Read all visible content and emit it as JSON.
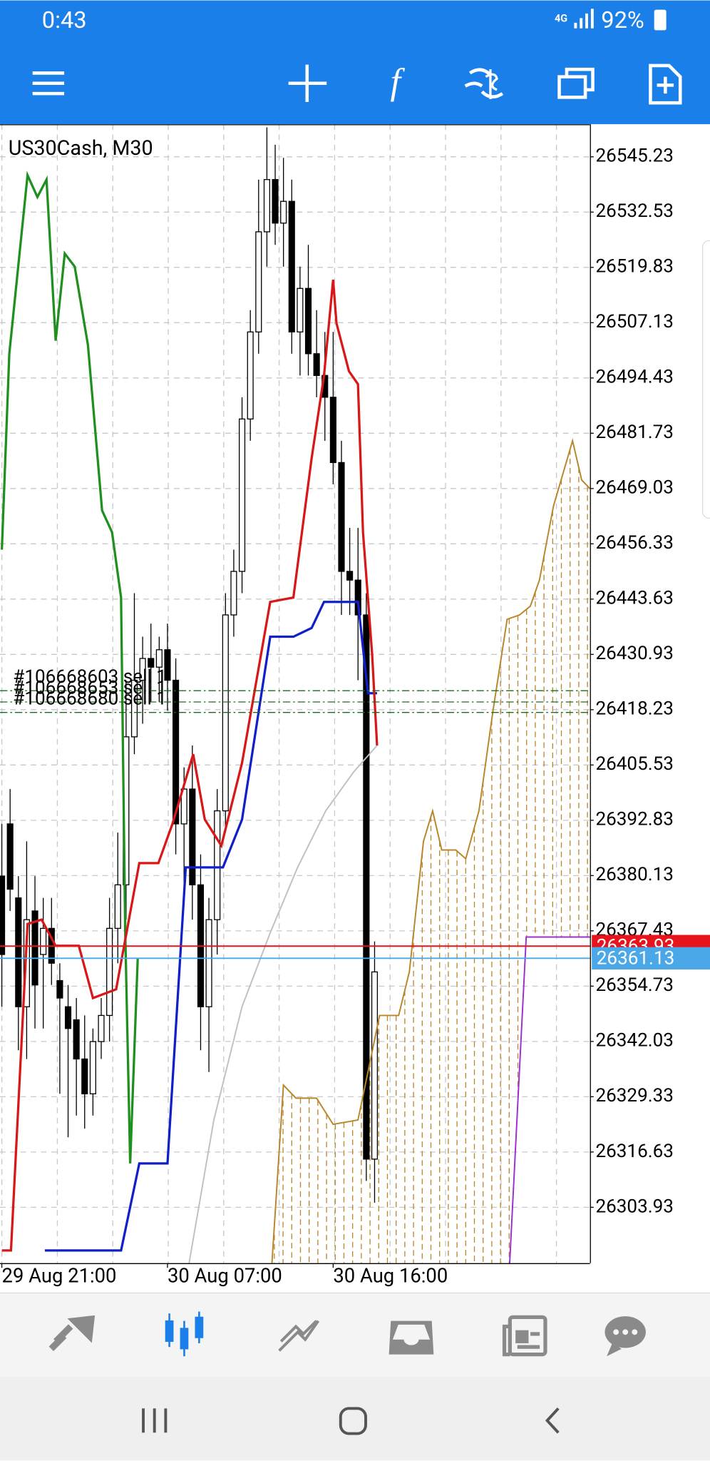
{
  "status_bar": {
    "time": "0:43",
    "network": "4G",
    "battery": "92%"
  },
  "chart_data": {
    "type": "candlestick",
    "title": "US30Cash, M30",
    "candles": {
      "open": [
        26380,
        26392,
        26375,
        26350,
        26372,
        26362,
        26368,
        26356,
        26350,
        26347,
        26338,
        26330,
        26342,
        26348,
        26368,
        26378,
        26412,
        26425,
        26430,
        26428,
        26432,
        26425,
        26392,
        26400,
        26378,
        26350,
        26370,
        26395,
        26440,
        26450,
        26485,
        26505,
        26528,
        26540,
        26530,
        26535,
        26505,
        26515,
        26500,
        26495,
        26490,
        26475,
        26450,
        26448,
        26440,
        26315
      ],
      "high": [
        26392,
        26400,
        26380,
        26388,
        26380,
        26375,
        26375,
        26360,
        26355,
        26352,
        26348,
        26345,
        26352,
        26375,
        26390,
        26425,
        26445,
        26435,
        26438,
        26435,
        26438,
        26430,
        26405,
        26410,
        26385,
        26375,
        26400,
        26445,
        26455,
        26490,
        26510,
        26540,
        26552,
        26548,
        26545,
        26540,
        26520,
        26525,
        26510,
        26505,
        26505,
        26480,
        26460,
        26460,
        26445,
        26365
      ],
      "low": [
        26350,
        26372,
        26340,
        26338,
        26345,
        26345,
        26355,
        26330,
        26320,
        26325,
        26322,
        26325,
        26338,
        26342,
        26360,
        26370,
        26408,
        26415,
        26420,
        26420,
        26418,
        26385,
        26375,
        26370,
        26340,
        26335,
        26362,
        26390,
        26435,
        26445,
        26480,
        26500,
        26520,
        26525,
        26520,
        26500,
        26495,
        26495,
        26490,
        26480,
        26470,
        26440,
        26440,
        26425,
        26310,
        26305
      ],
      "close": [
        26362,
        26377,
        26350,
        26370,
        26355,
        26368,
        26360,
        26352,
        26345,
        26338,
        26330,
        26342,
        26348,
        26368,
        26378,
        26412,
        26425,
        26430,
        26428,
        26432,
        26425,
        26392,
        26400,
        26378,
        26350,
        26370,
        26395,
        26440,
        26450,
        26485,
        26505,
        26528,
        26540,
        26530,
        26535,
        26505,
        26515,
        26500,
        26495,
        26490,
        26475,
        26450,
        26448,
        26440,
        26315,
        26358
      ]
    },
    "xticks": [
      {
        "value": 0,
        "label": "29 Aug 21:00"
      },
      {
        "value": 20,
        "label": "30 Aug 07:00"
      },
      {
        "value": 40,
        "label": "30 Aug 16:00"
      }
    ],
    "xlim": [
      -0.22,
      71.0
    ],
    "ylim": [
      26291.1,
      26552.7
    ],
    "yticks": [
      26545.23,
      26532.53,
      26519.83,
      26507.13,
      26494.43,
      26481.73,
      26469.03,
      26456.33,
      26443.63,
      26430.93,
      26418.23,
      26405.53,
      26392.83,
      26380.13,
      26367.43,
      26354.73,
      26342.03,
      26329.33,
      26316.63,
      26303.93
    ],
    "grid": true,
    "series": [
      {
        "color": "#1f8f1f",
        "x": [
          0,
          0.9,
          3.1,
          4.3,
          5.4,
          6.5,
          7.6,
          8.8,
          10.4,
          12.1,
          13.3,
          14.4,
          14.9,
          15.5,
          16.4
        ],
        "values": [
          26455,
          26500,
          26541,
          26536,
          26540,
          26503,
          26523,
          26520,
          26502,
          26464,
          26459,
          26444,
          26367,
          26314,
          26361
        ]
      },
      {
        "color": "#c0c0c0",
        "x": [
          22.6,
          25.6,
          29.0,
          32.4,
          35.7,
          39.1,
          42.5,
          45.3
        ],
        "values": [
          26291,
          26324,
          26350,
          26367,
          26382,
          26395,
          26404,
          26410
        ]
      },
      {
        "color": "#1020c8",
        "x": [
          5.2,
          14.4,
          16.6,
          20.0,
          22.2,
          26.7,
          29.0,
          32.4,
          35.2,
          37.4,
          38.9,
          43.0,
          44.2,
          45.3
        ],
        "values": [
          26294,
          26294,
          26314,
          26314,
          26382,
          26382,
          26393,
          26435,
          26435,
          26437,
          26443,
          26443,
          26422,
          26422
        ]
      },
      {
        "color": "#d81818",
        "x": [
          0,
          1.1,
          3.1,
          4.8,
          6.5,
          9.3,
          11.0,
          13.8,
          16.6,
          18.9,
          20.6,
          23.1,
          24.5,
          26.5,
          29.0,
          32.4,
          35.2,
          37.4,
          38.9,
          40.0,
          40.4,
          41.9,
          43.0,
          43.6,
          44.7,
          45.3
        ],
        "values": [
          26294,
          26294,
          26369,
          26370,
          26364,
          26364,
          26352,
          26354,
          26383,
          26383,
          26392,
          26408,
          26393,
          26387,
          26406,
          26443,
          26444,
          26476,
          26495,
          26517,
          26507,
          26496,
          26493,
          26459,
          26431,
          26410
        ]
      },
      {
        "color": "#b8862b",
        "x": [
          32.6,
          34.0,
          35.5,
          38.0,
          40.0,
          43.0,
          44.2,
          45.6,
          47.9,
          49.2,
          50.9,
          52.0,
          53.1,
          54.8,
          56.0,
          57.6,
          59.3,
          61.0,
          62.5,
          63.8,
          64.9,
          66.6,
          68.9,
          70.0,
          71.0
        ],
        "values": [
          26291,
          26332,
          26329,
          26329,
          26323,
          26324,
          26335,
          26348,
          26348,
          26358,
          26388,
          26395,
          26386,
          26386,
          26384,
          26395,
          26418,
          26439,
          26440,
          26442,
          26448,
          26465,
          26480,
          26471,
          26469
        ]
      },
      {
        "color": "#9b30d0",
        "x": [
          61.3,
          63.3,
          71.0
        ],
        "values": [
          26291,
          26366,
          26366
        ]
      }
    ],
    "price_lines": [
      {
        "value": 26363.93,
        "color": "#e8141c"
      },
      {
        "value": 26361.13,
        "color": "#4aa8e8"
      }
    ],
    "orders": [
      {
        "label": "#106668603 sell 1",
        "price": 26422.6
      },
      {
        "label": "#106668653 sell 1",
        "price": 26420.0
      },
      {
        "label": "#106668680 sell 1",
        "price": 26417.6
      }
    ]
  }
}
